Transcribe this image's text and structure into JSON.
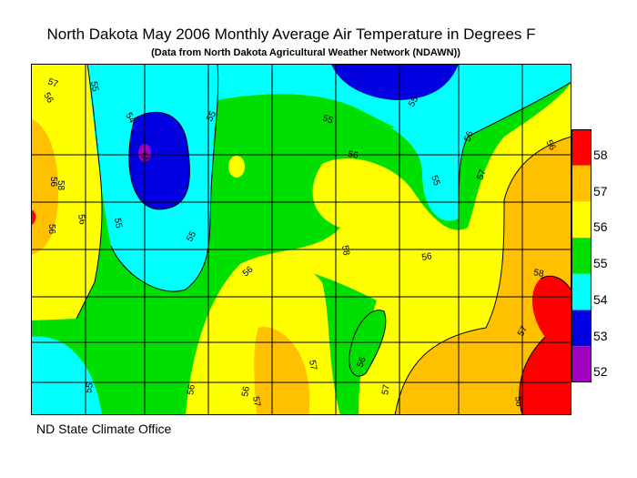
{
  "title": "North Dakota May 2006 Monthly Average Air Temperature in Degrees F",
  "subtitle": "(Data from North Dakota Agricultural Weather Network (NDAWN))",
  "credit": "ND State Climate Office",
  "legend": [
    {
      "value": "58",
      "color": "#ff0000"
    },
    {
      "value": "57",
      "color": "#ffc000"
    },
    {
      "value": "56",
      "color": "#ffff00"
    },
    {
      "value": "55",
      "color": "#00e000"
    },
    {
      "value": "54",
      "color": "#00ffff"
    },
    {
      "value": "53",
      "color": "#0000e0"
    },
    {
      "value": "52",
      "color": "#a000c0"
    }
  ],
  "contour_labels": [
    "56",
    "55",
    "55",
    "54",
    "55",
    "55",
    "56",
    "55",
    "56",
    "56",
    "57",
    "57",
    "55",
    "58",
    "56",
    "58",
    "56",
    "55",
    "56",
    "57",
    "56",
    "56",
    "57",
    "58",
    "56",
    "56",
    "57",
    "56",
    "57",
    "58",
    "55",
    "55"
  ]
}
